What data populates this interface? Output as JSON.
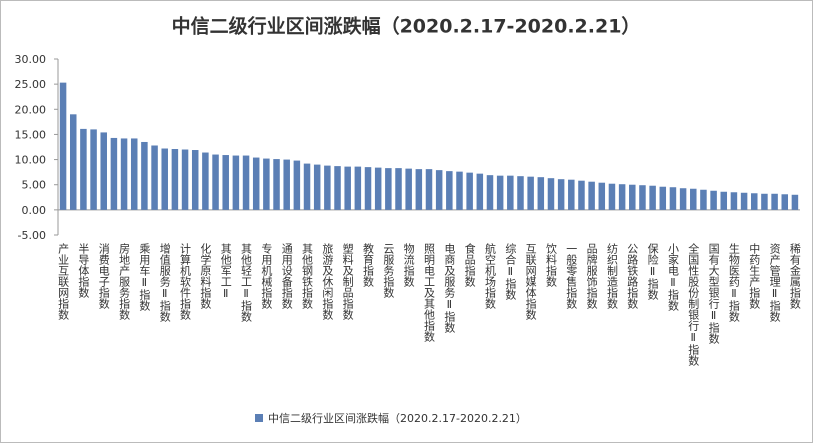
{
  "chart_data": {
    "type": "bar",
    "title": "中信二级行业区间涨跌幅（2020.2.17-2020.2.21）",
    "categories": [
      "产业互联网指数",
      null,
      "半导体指数",
      null,
      "消费电子指数",
      null,
      "房地产服务指数",
      null,
      "乘用车Ⅱ指数",
      null,
      "增值服务Ⅱ指数",
      null,
      "计算机软件指数",
      null,
      "化学原料指数",
      null,
      "其他军工Ⅱ",
      null,
      "其他轻工Ⅱ指数",
      null,
      "专用机械指数",
      null,
      "通用设备指数",
      null,
      "其他钢铁指数",
      null,
      "旅游及休闲指数",
      null,
      "塑料及制品指数",
      null,
      "教育指数",
      null,
      "云服务指数",
      null,
      "物流指数",
      null,
      "照明电工及其他指数",
      null,
      "电商及服务Ⅱ指数",
      null,
      "食品指数",
      null,
      "航空机场指数",
      null,
      "综合Ⅱ指数",
      null,
      "互联网媒体指数",
      null,
      "饮料指数",
      null,
      "一般零售指数",
      null,
      "品牌服饰指数",
      null,
      "纺织制造指数",
      null,
      "公路铁路指数",
      null,
      "保险Ⅱ指数",
      null,
      "小家电Ⅱ指数",
      null,
      "全国性股份制银行Ⅱ指数",
      null,
      "国有大型银行Ⅱ指数",
      null,
      "生物医药Ⅱ指数",
      null,
      "中药生产指数",
      null,
      "资产管理Ⅱ指数",
      null,
      "稀有金属指数"
    ],
    "series": [
      {
        "name": "中信二级行业区间涨跌幅（2020.2.17-2020.2.21）",
        "color": "#5b7fb5",
        "values": [
          25.3,
          19.0,
          16.1,
          16.0,
          15.4,
          14.3,
          14.2,
          14.2,
          13.5,
          12.8,
          12.2,
          12.1,
          12.0,
          11.9,
          11.4,
          11.0,
          10.9,
          10.8,
          10.8,
          10.4,
          10.2,
          10.1,
          10.0,
          9.8,
          9.2,
          9.0,
          8.8,
          8.7,
          8.6,
          8.6,
          8.5,
          8.4,
          8.3,
          8.3,
          8.2,
          8.1,
          8.1,
          7.9,
          7.7,
          7.6,
          7.4,
          7.2,
          6.9,
          6.8,
          6.8,
          6.7,
          6.6,
          6.5,
          6.3,
          6.1,
          6.0,
          5.8,
          5.6,
          5.4,
          5.2,
          5.1,
          5.0,
          4.9,
          4.8,
          4.6,
          4.5,
          4.3,
          4.2,
          4.0,
          3.8,
          3.6,
          3.5,
          3.4,
          3.3,
          3.2,
          3.2,
          3.1,
          3.0
        ]
      }
    ],
    "ylim": [
      -5,
      30
    ],
    "yticks": [
      {
        "value": -5,
        "label": "-5.00"
      },
      {
        "value": 0,
        "label": "0.00"
      },
      {
        "value": 5,
        "label": "5.00"
      },
      {
        "value": 10,
        "label": "10.00"
      },
      {
        "value": 15,
        "label": "15.00"
      },
      {
        "value": 20,
        "label": "20.00"
      },
      {
        "value": 25,
        "label": "25.00"
      },
      {
        "value": 30,
        "label": "30.00"
      }
    ],
    "legend": "bottom"
  }
}
